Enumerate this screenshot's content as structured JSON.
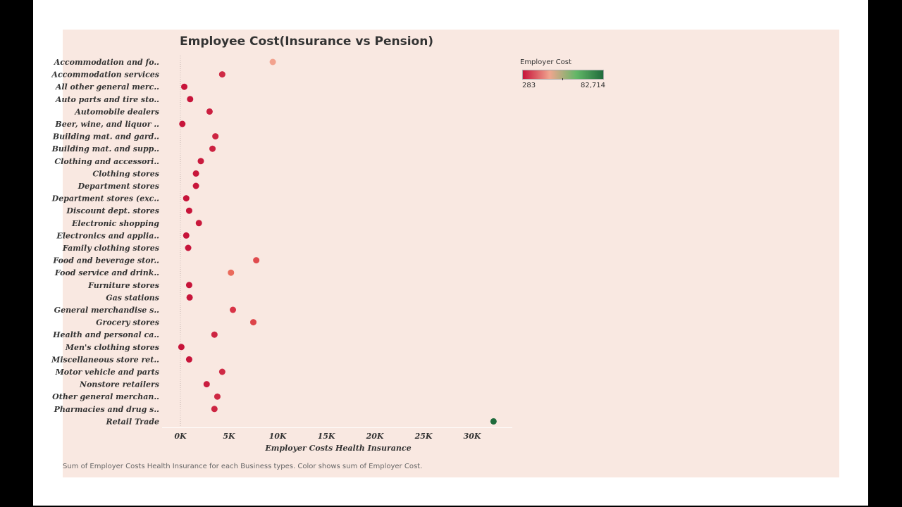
{
  "title": "Employee Cost(Insurance vs Pension)",
  "caption": "Sum of Employer Costs Health Insurance for each Business types.  Color shows sum of Employer Cost.",
  "legend": {
    "title": "Employer Cost",
    "min_label": "283",
    "max_label": "82,714",
    "min": 283,
    "max": 82714,
    "colors": [
      "#c7143a",
      "#f0a58f",
      "#62b767",
      "#1f6b3c"
    ]
  },
  "chart_data": {
    "type": "scatter",
    "title": "Employee Cost(Insurance vs Pension)",
    "xlabel": "Employer Costs Health Insurance",
    "ylabel": "",
    "xlim": [
      -1200,
      34000
    ],
    "x_ticks": [
      0,
      5000,
      10000,
      15000,
      20000,
      25000,
      30000
    ],
    "x_tick_labels": [
      "0K",
      "5K",
      "10K",
      "15K",
      "20K",
      "25K",
      "30K"
    ],
    "color_by": "Employer Cost",
    "categories": [
      "Accommodation and fo..",
      "Accommodation services",
      "All other general merc..",
      "Auto parts and tire sto..",
      "Automobile dealers",
      "Beer, wine, and liquor ..",
      "Building mat. and gard..",
      "Building mat. and supp..",
      "Clothing and accessori..",
      "Clothing stores",
      "Department stores",
      "Department stores (exc..",
      "Discount dept. stores",
      "Electronic shopping",
      "Electronics and applia..",
      "Family clothing stores",
      "Food and beverage stor..",
      "Food service and drink..",
      "Furniture stores",
      "Gas stations",
      "General merchandise s..",
      "Grocery stores",
      "Health and personal ca..",
      "Men's clothing stores",
      "Miscellaneous store ret..",
      "Motor vehicle and parts",
      "Nonstore retailers",
      "Other general merchan..",
      "Pharmacies and drug s..",
      "Retail Trade"
    ],
    "values": [
      9500,
      4300,
      400,
      1000,
      3000,
      200,
      3600,
      3300,
      2100,
      1600,
      1600,
      600,
      900,
      1900,
      600,
      800,
      7800,
      5200,
      900,
      950,
      5400,
      7500,
      3500,
      100,
      900,
      4300,
      2700,
      3800,
      3500,
      32200
    ],
    "colors": [
      "#f2a28e",
      "#cf2a45",
      "#c7143a",
      "#c7143a",
      "#cb1f40",
      "#c7143a",
      "#cd2542",
      "#cc2241",
      "#c91a3d",
      "#c8173b",
      "#c8173b",
      "#c7143a",
      "#c7143a",
      "#c9193c",
      "#c7143a",
      "#c7143a",
      "#e04b4e",
      "#ea6a5b",
      "#c7143a",
      "#c7143a",
      "#d83346",
      "#dd4449",
      "#cd2542",
      "#c7143a",
      "#c7143a",
      "#cf2a45",
      "#ca1d3f",
      "#ce2843",
      "#cd2542",
      "#1f6b3c"
    ]
  }
}
